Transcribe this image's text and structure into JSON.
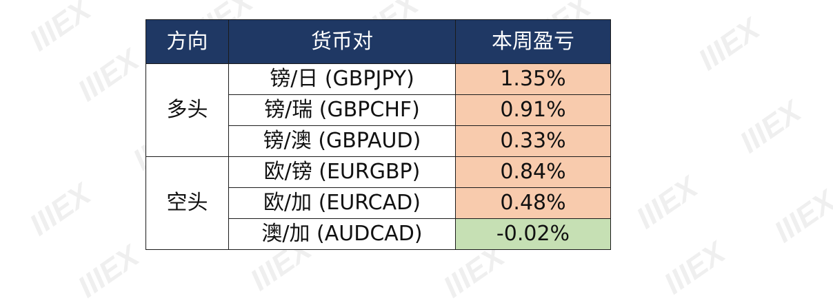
{
  "header": {
    "direction": "方向",
    "pair": "货币对",
    "pnl": "本周盈亏"
  },
  "groups": [
    {
      "direction": "多头",
      "rows": [
        {
          "pair": "镑/日 (GBPJPY)",
          "pnl": "1.35%"
        },
        {
          "pair": "镑/瑞 (GBPCHF)",
          "pnl": "0.91%"
        },
        {
          "pair": "镑/澳 (GBPAUD)",
          "pnl": "0.33%"
        }
      ]
    },
    {
      "direction": "空头",
      "rows": [
        {
          "pair": "欧/镑 (EURGBP)",
          "pnl": "0.84%"
        },
        {
          "pair": "欧/加 (EURCAD)",
          "pnl": "0.48%"
        },
        {
          "pair": "澳/加 (AUDCAD)",
          "pnl": "-0.02%"
        }
      ]
    }
  ],
  "colors": {
    "header_bg": "#1f3864",
    "positive_bg": "#f8cbad",
    "negative_bg": "#c6e0b4"
  },
  "watermark_icon": "mex-logo-watermark",
  "chart_data": {
    "type": "table",
    "columns": [
      "方向",
      "货币对",
      "本周盈亏"
    ],
    "rows": [
      [
        "多头",
        "镑/日 (GBPJPY)",
        1.35
      ],
      [
        "多头",
        "镑/瑞 (GBPCHF)",
        0.91
      ],
      [
        "多头",
        "镑/澳 (GBPAUD)",
        0.33
      ],
      [
        "空头",
        "欧/镑 (EURGBP)",
        0.84
      ],
      [
        "空头",
        "欧/加 (EURCAD)",
        0.48
      ],
      [
        "空头",
        "澳/加 (AUDCAD)",
        -0.02
      ]
    ]
  }
}
